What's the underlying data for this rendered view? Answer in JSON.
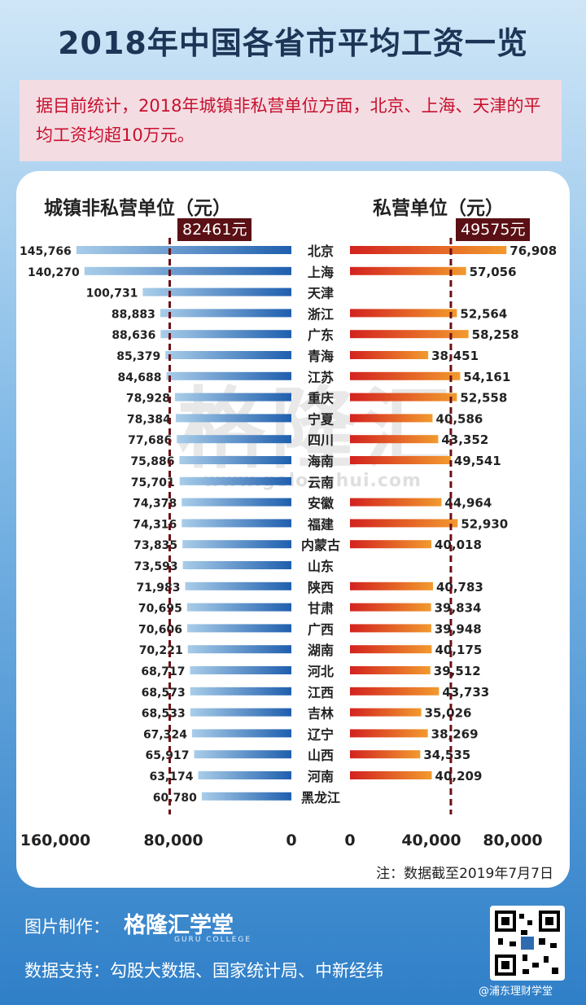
{
  "title": "2018年中国各省市平均工资一览",
  "intro": "据目前统计，2018年城镇非私营单位方面，北京、上海、天津的平均工资均超10万元。",
  "note": "注：数据截至2019年7月7日",
  "watermark": {
    "text": "格隆汇",
    "url": "www.gelonghui.com"
  },
  "footer": {
    "maker_label": "图片制作：",
    "brand": "格隆汇学堂",
    "brand_sub": "GURU COLLEGE",
    "source_label": "数据支持：勾股大数据、国家统计局、中新经纬",
    "weibo": "@浦东理财学堂"
  },
  "colors": {
    "left_bar": "#2e6db4",
    "right_bar_start": "#d3221f",
    "right_bar_end": "#f29a2e",
    "avg_line": "#6b0f15"
  },
  "chart_data": {
    "type": "bar",
    "categories": [
      "北京",
      "上海",
      "天津",
      "浙江",
      "广东",
      "青海",
      "江苏",
      "重庆",
      "宁夏",
      "四川",
      "海南",
      "云南",
      "安徽",
      "福建",
      "内蒙古",
      "山东",
      "陕西",
      "甘肃",
      "广西",
      "湖南",
      "河北",
      "江西",
      "吉林",
      "辽宁",
      "山西",
      "河南",
      "黑龙江"
    ],
    "series": [
      {
        "name": "城镇非私营单位（元）",
        "direction": "left",
        "values": [
          145766,
          140270,
          100731,
          88883,
          88636,
          85379,
          84688,
          78928,
          78384,
          77686,
          75886,
          75701,
          74378,
          74316,
          73835,
          73593,
          71983,
          70695,
          70606,
          70221,
          68717,
          68573,
          68533,
          67324,
          65917,
          63174,
          60780
        ],
        "labels": [
          "145,766",
          "140,270",
          "100,731",
          "88,883",
          "88,636",
          "85,379",
          "84,688",
          "78,928",
          "78,384",
          "77,686",
          "75,886",
          "75,701",
          "74,378",
          "74,316",
          "73,835",
          "73,593",
          "71,983",
          "70,695",
          "70,606",
          "70,221",
          "68,717",
          "68,573",
          "68,533",
          "67,324",
          "65,917",
          "63,174",
          "60,780"
        ],
        "average": 82461,
        "average_label": "82461元",
        "xlim": [
          0,
          160000
        ],
        "ticks": [
          "160,000",
          "80,000",
          "0"
        ]
      },
      {
        "name": "私营单位（元）",
        "direction": "right",
        "values": [
          76908,
          57056,
          null,
          52564,
          58258,
          38451,
          54161,
          52558,
          40586,
          43352,
          49541,
          null,
          44964,
          52930,
          40018,
          null,
          40783,
          39834,
          39948,
          40175,
          39512,
          43733,
          35026,
          38269,
          34535,
          40209,
          null
        ],
        "labels": [
          "76,908",
          "57,056",
          "",
          "52,564",
          "58,258",
          "38,451",
          "54,161",
          "52,558",
          "40,586",
          "43,352",
          "49,541",
          "",
          "44,964",
          "52,930",
          "40,018",
          "",
          "40,783",
          "39,834",
          "39,948",
          "40,175",
          "39,512",
          "43,733",
          "35,026",
          "38,269",
          "34,535",
          "40,209",
          ""
        ],
        "average": 49575,
        "average_label": "49575元",
        "xlim": [
          0,
          80000
        ],
        "ticks": [
          "0",
          "40,000",
          "80,000"
        ]
      }
    ],
    "grid": false,
    "legend": "none"
  }
}
